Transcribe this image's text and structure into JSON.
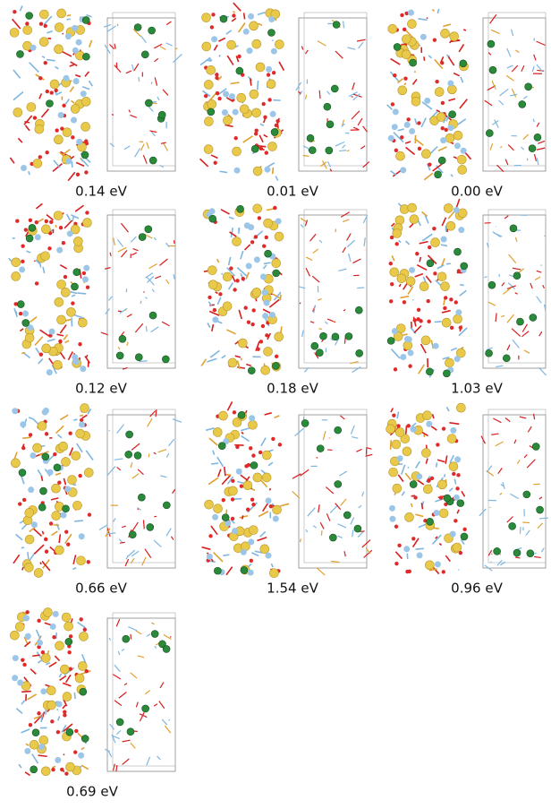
{
  "panels": [
    {
      "label": "0.14 eV"
    },
    {
      "label": "0.01 eV"
    },
    {
      "label": "0.00 eV"
    },
    {
      "label": "0.12 eV"
    },
    {
      "label": "0.18 eV"
    },
    {
      "label": "1.03 eV"
    },
    {
      "label": "0.66 eV"
    },
    {
      "label": "1.54 eV"
    },
    {
      "label": "0.96 eV"
    },
    {
      "label": "0.69 eV"
    }
  ]
}
